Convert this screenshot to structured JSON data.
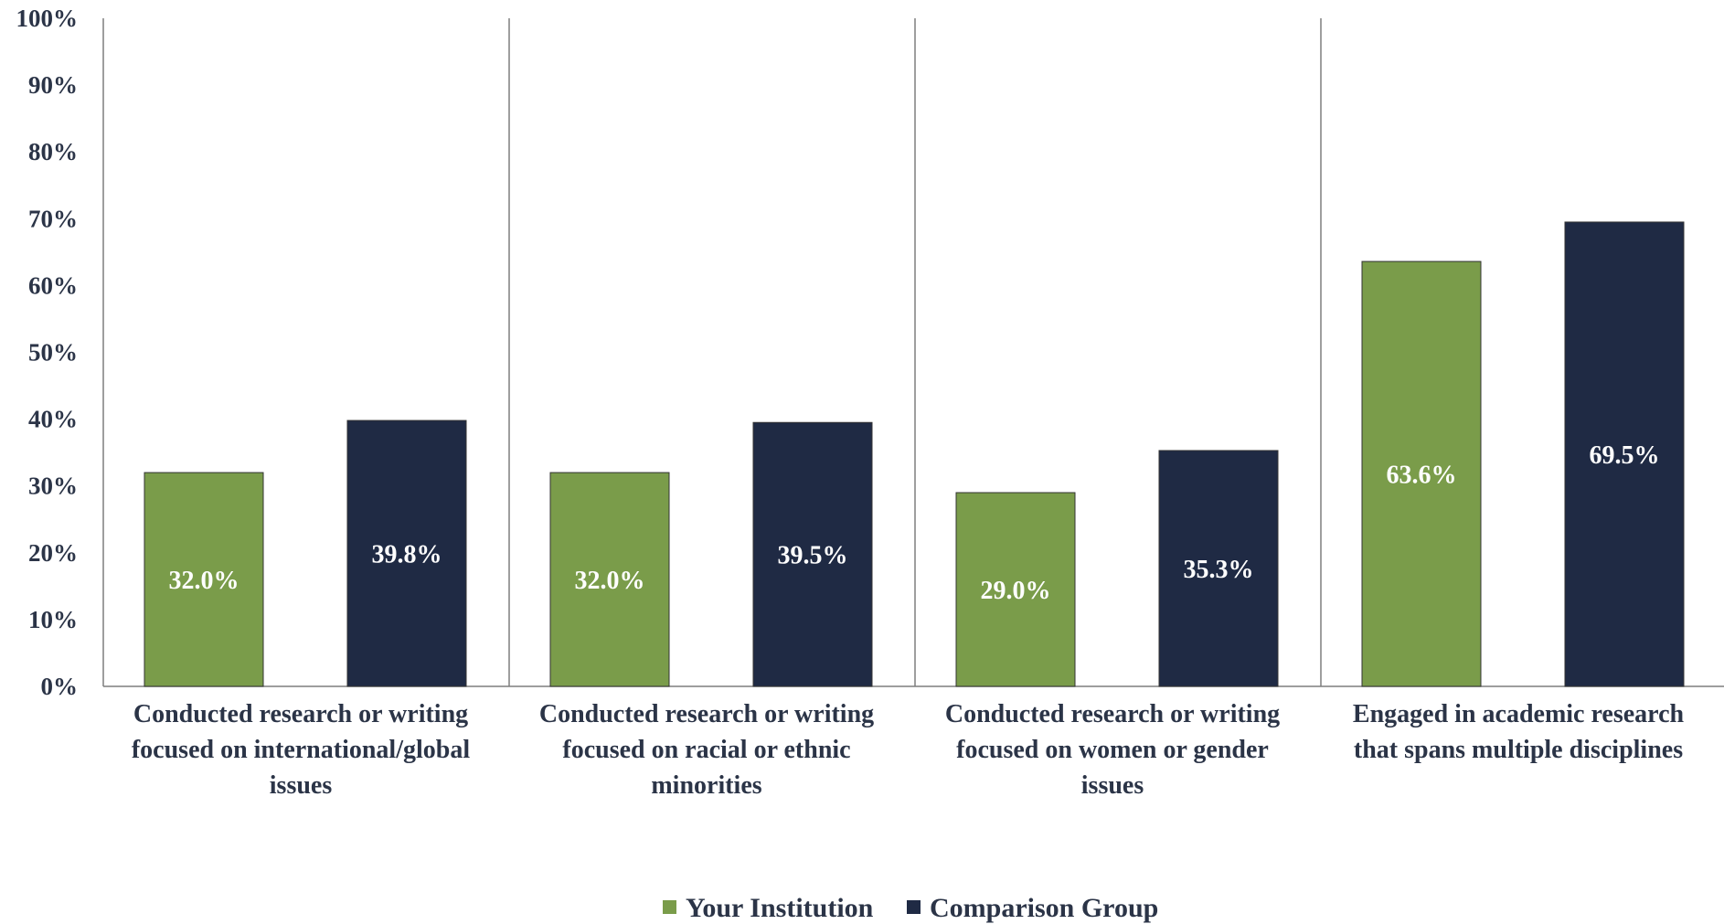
{
  "chart_data": {
    "type": "bar",
    "categories": [
      [
        "Conducted research or writing",
        "focused on international/global",
        "issues"
      ],
      [
        "Conducted research or writing",
        "focused on racial or ethnic",
        "minorities"
      ],
      [
        "Conducted research or writing",
        "focused on women or gender",
        "issues"
      ],
      [
        "Engaged in academic research",
        "that spans multiple disciplines"
      ]
    ],
    "series": [
      {
        "name": "Your Institution",
        "color": "#7a9c4a",
        "values": [
          32.0,
          32.0,
          29.0,
          63.6
        ],
        "labels": [
          "32.0%",
          "32.0%",
          "29.0%",
          "63.6%"
        ]
      },
      {
        "name": "Comparison Group",
        "color": "#1f2a44",
        "values": [
          39.8,
          39.5,
          35.3,
          69.5
        ],
        "labels": [
          "39.8%",
          "39.5%",
          "35.3%",
          "69.5%"
        ]
      }
    ],
    "ylim": [
      0,
      100
    ],
    "yticks": [
      "0%",
      "10%",
      "20%",
      "30%",
      "40%",
      "50%",
      "60%",
      "70%",
      "80%",
      "90%",
      "100%"
    ],
    "grid": false,
    "category_separators": true,
    "legend_position": "bottom"
  }
}
